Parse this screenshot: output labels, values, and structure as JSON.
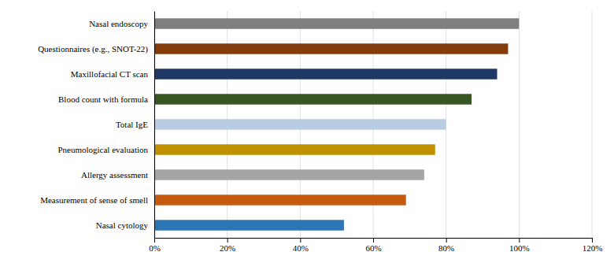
{
  "chart_data": {
    "type": "bar",
    "orientation": "horizontal",
    "categories": [
      "Nasal cytology",
      "Measurement of sense of smell",
      "Allergy assessment",
      "Pneumological evaluation",
      "Total IgE",
      "Blood count with formula",
      "Maxillofacial CT scan",
      "Questionnaires (e.g., SNOT-22)",
      "Nasal endoscopy"
    ],
    "values": [
      52,
      69,
      74,
      77,
      80,
      87,
      94,
      97,
      100
    ],
    "colors": [
      "#2e75b6",
      "#c55a11",
      "#a5a5a5",
      "#bf9000",
      "#b8cce4",
      "#375623",
      "#1f3864",
      "#843c0c",
      "#7f7f7f"
    ],
    "xlim": [
      0,
      120
    ],
    "xticks": [
      {
        "value": 0,
        "label": "0%"
      },
      {
        "value": 20,
        "label": "20%"
      },
      {
        "value": 40,
        "label": "40%"
      },
      {
        "value": 60,
        "label": "60%"
      },
      {
        "value": 80,
        "label": "80%"
      },
      {
        "value": 100,
        "label": "100%"
      },
      {
        "value": 120,
        "label": "120%"
      }
    ],
    "grid": true
  }
}
